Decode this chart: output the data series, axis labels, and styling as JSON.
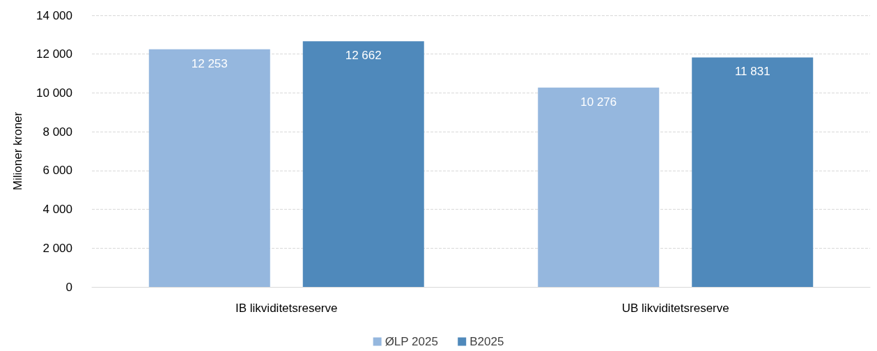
{
  "chart_data": {
    "type": "bar",
    "ylabel": "Milioner kroner",
    "categories": [
      "IB likviditetsreserve",
      "UB likviditetsreserve"
    ],
    "series": [
      {
        "name": "ØLP 2025",
        "color": "#95b7de",
        "values": [
          12253,
          10276
        ],
        "value_labels": [
          "12 253",
          "10 276"
        ]
      },
      {
        "name": "B2025",
        "color": "#4f89bb",
        "values": [
          12662,
          11831
        ],
        "value_labels": [
          "12 662",
          "11 831"
        ]
      }
    ],
    "ylim": [
      0,
      14000
    ],
    "yticks": [
      0,
      {
        "value": 2000,
        "label": "2 000"
      },
      {
        "value": 4000,
        "label": "4 000"
      },
      {
        "value": 6000,
        "label": "6 000"
      },
      {
        "value": 8000,
        "label": "8 000"
      },
      {
        "value": 10000,
        "label": "10 000"
      },
      {
        "value": 12000,
        "label": "12 000"
      },
      {
        "value": 14000,
        "label": "14 000"
      }
    ],
    "grid": "y",
    "legend": "bottom"
  }
}
